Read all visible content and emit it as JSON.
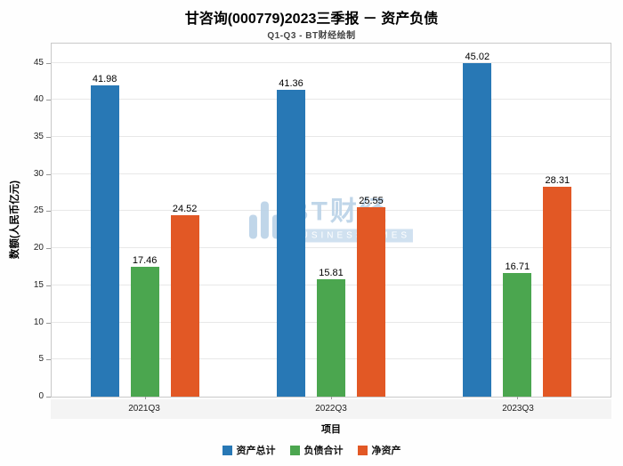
{
  "subtitle": "Q1-Q3 - BT财经绘制",
  "watermark": {
    "text_cn": "BT财经",
    "text_en": "BUSINESSTIMES"
  },
  "chart_data": {
    "type": "bar",
    "title": "甘咨询(000779)2023三季报 － 资产负债",
    "xlabel": "项目",
    "ylabel": "数额(人民币亿元)",
    "categories": [
      "2021Q3",
      "2022Q3",
      "2023Q3"
    ],
    "series": [
      {
        "name": "资产总计",
        "color": "#2878b5",
        "values": [
          41.98,
          41.36,
          45.02
        ]
      },
      {
        "name": "负债合计",
        "color": "#4ba64f",
        "values": [
          17.46,
          15.81,
          16.71
        ]
      },
      {
        "name": "净资产",
        "color": "#e25825",
        "values": [
          24.52,
          25.55,
          28.31
        ]
      }
    ],
    "ylim": [
      0,
      47.6
    ],
    "yticks": [
      0,
      5,
      10,
      15,
      20,
      25,
      30,
      35,
      40,
      45
    ],
    "grid": true,
    "value_labels": true,
    "legend_position": "bottom"
  }
}
